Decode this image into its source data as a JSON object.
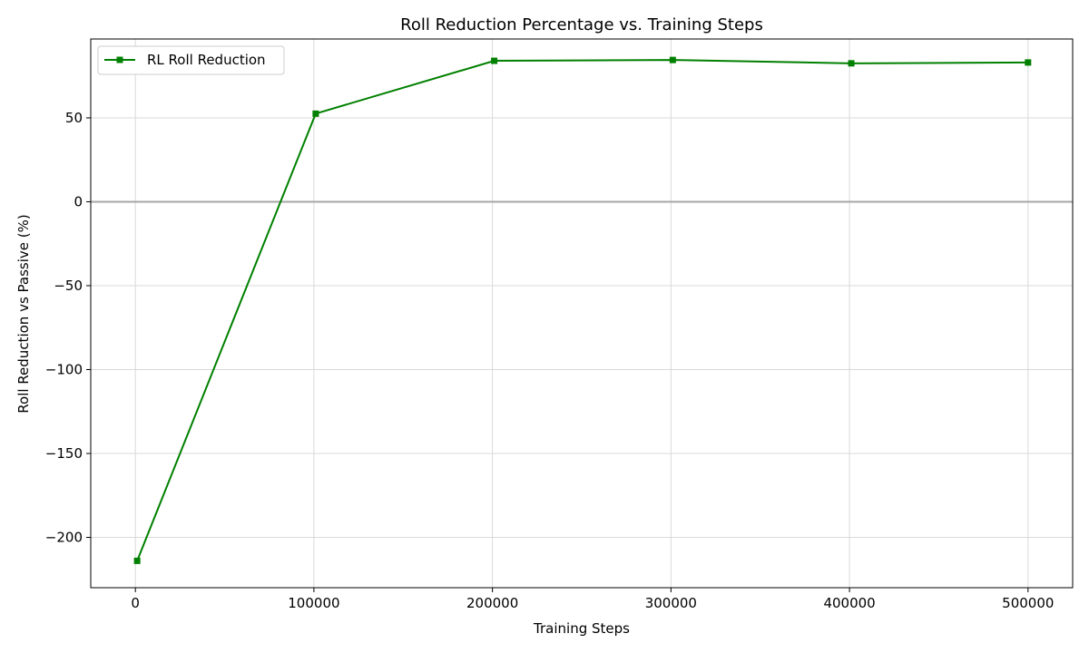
{
  "chart_data": {
    "type": "line",
    "title": "Roll Reduction Percentage vs. Training Steps",
    "xlabel": "Training Steps",
    "ylabel": "Roll Reduction vs Passive (%)",
    "xlim": [
      -25000,
      525000
    ],
    "ylim": [
      -230,
      97
    ],
    "x_ticks": [
      0,
      100000,
      200000,
      300000,
      400000,
      500000
    ],
    "x_tick_labels": [
      "0",
      "100000",
      "200000",
      "300000",
      "400000",
      "500000"
    ],
    "y_ticks": [
      -200,
      -150,
      -100,
      -50,
      0,
      50
    ],
    "y_tick_labels": [
      "−200",
      "−150",
      "−100",
      "−50",
      "0",
      "50"
    ],
    "grid": true,
    "reference_line_y": 0,
    "legend_position": "top-left",
    "series": [
      {
        "name": "RL Roll Reduction",
        "color": "#008000",
        "marker": "square",
        "x": [
          1000,
          101000,
          201000,
          301000,
          401000,
          500000
        ],
        "values": [
          -214,
          52.5,
          84,
          84.5,
          82.5,
          83
        ]
      }
    ]
  }
}
